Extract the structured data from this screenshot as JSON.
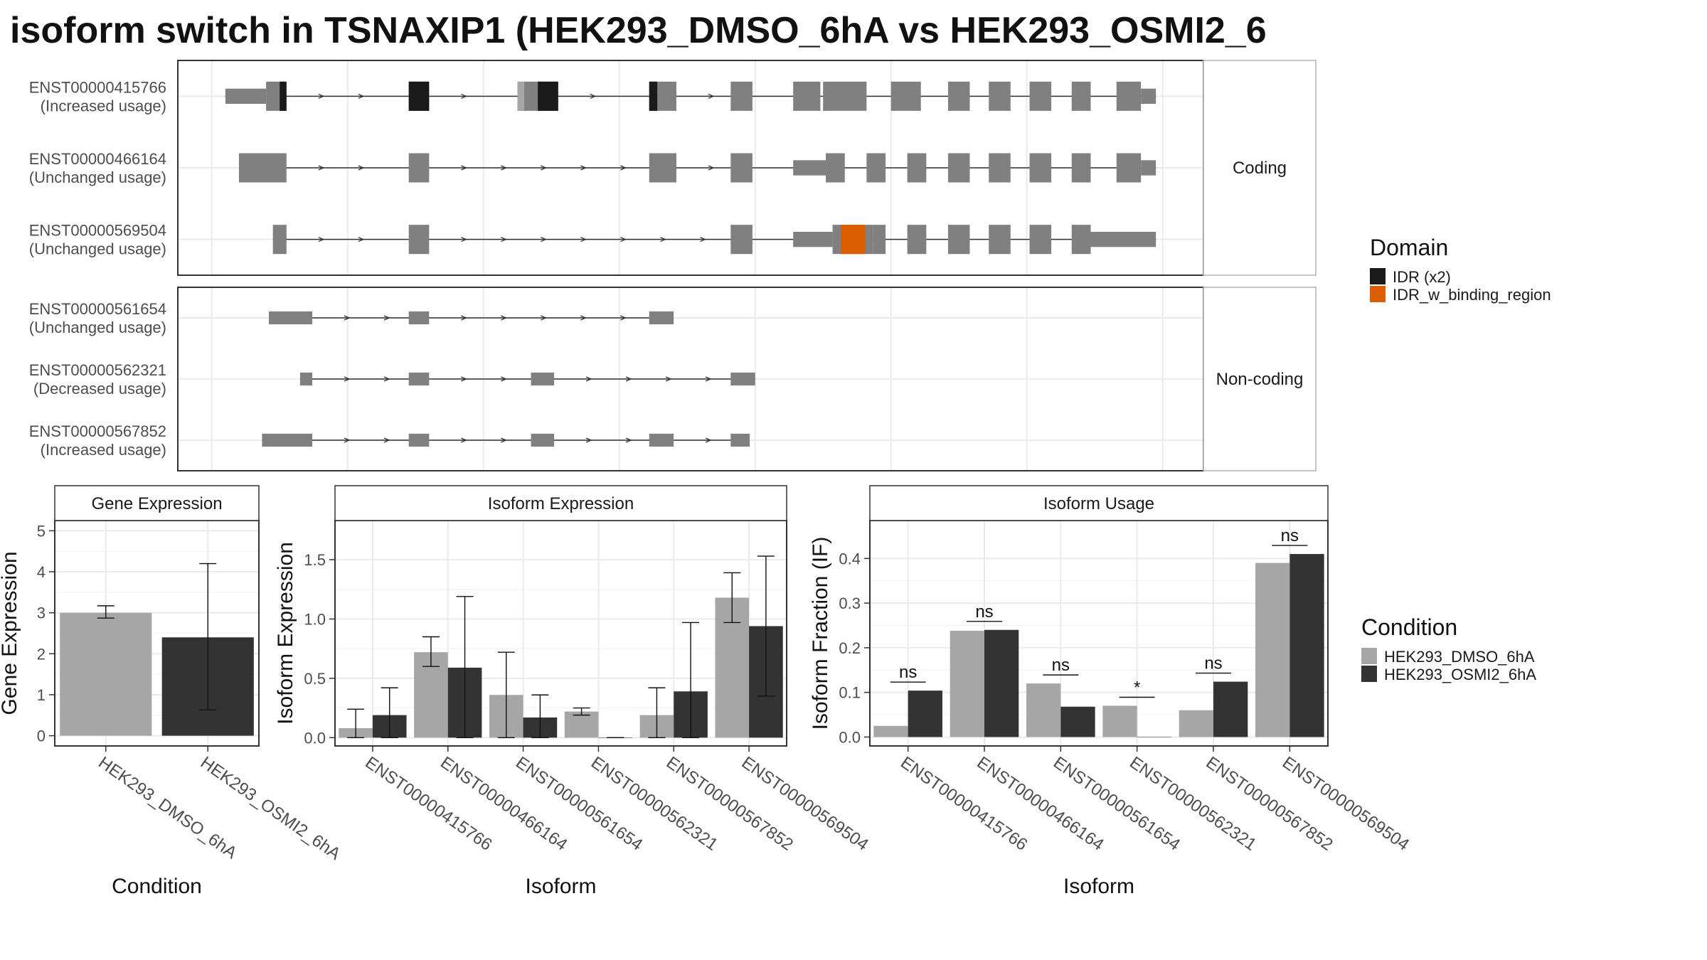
{
  "title": "isoform switch in TSNAXIP1 (HEK293_DMSO_6hA vs HEK293_OSMI2_6",
  "colors": {
    "exon": "#808080",
    "idr": "#1a1a1a",
    "idr_binding": "#d95f02",
    "dmso": "#a6a6a6",
    "osmi": "#333333",
    "panel_border": "#333333",
    "strip_border": "#b3b3b3",
    "grid": "#ebebeb"
  },
  "structure": {
    "facets": [
      {
        "label": "Coding",
        "isoforms": [
          {
            "id": "ENST00000415766",
            "status": "(Increased usage)",
            "exons": [
              [
                1,
                4,
                "s"
              ],
              [
                4,
                5.5,
                "t"
              ],
              [
                14.5,
                16,
                "t"
              ],
              [
                22.5,
                23,
                "t"
              ],
              [
                23,
                24,
                "t"
              ],
              [
                24,
                25.5,
                "t"
              ],
              [
                32.2,
                32.8,
                "t"
              ],
              [
                32.8,
                34.2,
                "t"
              ],
              [
                38.2,
                39.8,
                "t"
              ],
              [
                42.8,
                44.8,
                "t"
              ],
              [
                45,
                48.2,
                "t"
              ],
              [
                50,
                52.2,
                "t"
              ],
              [
                54.2,
                55.8,
                "t"
              ],
              [
                57.2,
                58.8,
                "t"
              ],
              [
                60.2,
                61.8,
                "t"
              ],
              [
                63.3,
                64.7,
                "t"
              ],
              [
                66.6,
                68.4,
                "t"
              ],
              [
                68.4,
                69.5,
                "s"
              ]
            ],
            "domains": [
              [
                5,
                5.5,
                "idr"
              ],
              [
                14.5,
                16,
                "idr"
              ],
              [
                22.5,
                23,
                "light"
              ],
              [
                24,
                25.5,
                "idr"
              ],
              [
                32.2,
                32.8,
                "idr"
              ]
            ]
          },
          {
            "id": "ENST00000466164",
            "status": "(Unchanged usage)",
            "exons": [
              [
                2,
                5.5,
                "t"
              ],
              [
                14.5,
                16,
                "t"
              ],
              [
                32.2,
                34.2,
                "t"
              ],
              [
                38.2,
                39.8,
                "t"
              ],
              [
                42.8,
                45.2,
                "s"
              ],
              [
                45.2,
                46.6,
                "t"
              ],
              [
                48.2,
                49.6,
                "t"
              ],
              [
                51.2,
                52.6,
                "t"
              ],
              [
                54.2,
                55.8,
                "t"
              ],
              [
                57.2,
                58.8,
                "t"
              ],
              [
                60.2,
                61.8,
                "t"
              ],
              [
                63.3,
                64.7,
                "t"
              ],
              [
                66.6,
                68.4,
                "t"
              ],
              [
                68.4,
                69.5,
                "s"
              ]
            ],
            "domains": []
          },
          {
            "id": "ENST00000569504",
            "status": "(Unchanged usage)",
            "exons": [
              [
                4.5,
                5.5,
                "t"
              ],
              [
                14.5,
                16,
                "t"
              ],
              [
                38.2,
                39.8,
                "t"
              ],
              [
                42.8,
                45.7,
                "s"
              ],
              [
                45.7,
                48.7,
                "t"
              ],
              [
                48.7,
                49.6,
                "t"
              ],
              [
                51.2,
                52.6,
                "t"
              ],
              [
                54.2,
                55.8,
                "t"
              ],
              [
                57.2,
                58.8,
                "t"
              ],
              [
                60.2,
                61.8,
                "t"
              ],
              [
                63.3,
                64.7,
                "t"
              ],
              [
                64.7,
                69.5,
                "s"
              ]
            ],
            "domains": [
              [
                46.3,
                48.1,
                "binding"
              ]
            ]
          }
        ]
      },
      {
        "label": "Non-coding",
        "isoforms": [
          {
            "id": "ENST00000561654",
            "status": "(Unchanged usage)",
            "exons": [
              [
                4.2,
                7.4,
                "s"
              ],
              [
                14.5,
                16,
                "s"
              ],
              [
                32.2,
                34,
                "s"
              ]
            ],
            "domains": []
          },
          {
            "id": "ENST00000562321",
            "status": "(Decreased usage)",
            "exons": [
              [
                6.5,
                7.4,
                "s"
              ],
              [
                14.5,
                16,
                "s"
              ],
              [
                23.5,
                25.2,
                "s"
              ],
              [
                38.2,
                40,
                "s"
              ]
            ],
            "domains": []
          },
          {
            "id": "ENST00000567852",
            "status": "(Increased usage)",
            "exons": [
              [
                3.7,
                7.4,
                "s"
              ],
              [
                14.5,
                16,
                "s"
              ],
              [
                23.5,
                25.2,
                "s"
              ],
              [
                32.2,
                34,
                "s"
              ],
              [
                38.2,
                39.6,
                "s"
              ]
            ],
            "domains": []
          }
        ]
      }
    ]
  },
  "legends": {
    "domain": {
      "title": "Domain",
      "items": [
        {
          "label": "IDR (x2)",
          "color": "#1a1a1a"
        },
        {
          "label": "IDR_w_binding_region",
          "color": "#d95f02"
        }
      ]
    },
    "condition": {
      "title": "Condition",
      "items": [
        {
          "label": "HEK293_DMSO_6hA",
          "color": "#a6a6a6"
        },
        {
          "label": "HEK293_OSMI2_6hA",
          "color": "#333333"
        }
      ]
    }
  },
  "chart_data": [
    {
      "type": "bar",
      "strip": "Gene Expression",
      "xlabel": "Condition",
      "ylabel": "Gene Expression",
      "ylim": [
        -0.25,
        5.25
      ],
      "yticks": [
        "0",
        "1",
        "2",
        "3",
        "4",
        "5"
      ],
      "categories": [
        "HEK293_DMSO_6hA",
        "HEK293_OSMI2_6hA"
      ],
      "values": [
        3.0,
        2.4
      ],
      "err_low": [
        2.87,
        0.63
      ],
      "err_high": [
        3.17,
        4.2
      ]
    },
    {
      "type": "bar",
      "strip": "Isoform Expression",
      "xlabel": "Isoform",
      "ylabel": "Isoform Expression",
      "ylim": [
        -0.07,
        1.83
      ],
      "yticks": [
        "0.0",
        "0.5",
        "1.0",
        "1.5"
      ],
      "categories": [
        "ENST00000415766",
        "ENST00000466164",
        "ENST00000561654",
        "ENST00000562321",
        "ENST00000567852",
        "ENST00000569504"
      ],
      "series": [
        {
          "name": "HEK293_DMSO_6hA",
          "values": [
            0.08,
            0.72,
            0.36,
            0.22,
            0.19,
            1.18
          ],
          "err_low": [
            0.0,
            0.6,
            0.0,
            0.19,
            0.0,
            0.97
          ],
          "err_high": [
            0.24,
            0.85,
            0.72,
            0.25,
            0.42,
            1.39
          ]
        },
        {
          "name": "HEK293_OSMI2_6hA",
          "values": [
            0.19,
            0.59,
            0.17,
            0.0,
            0.39,
            0.94
          ],
          "err_low": [
            0.0,
            0.0,
            0.0,
            0.0,
            0.0,
            0.35
          ],
          "err_high": [
            0.42,
            1.19,
            0.36,
            0.0,
            0.97,
            1.53
          ]
        }
      ]
    },
    {
      "type": "bar",
      "strip": "Isoform Usage",
      "xlabel": "Isoform",
      "ylabel": "Isoform Fraction (IF)",
      "ylim": [
        -0.02,
        0.485
      ],
      "yticks": [
        "0.0",
        "0.1",
        "0.2",
        "0.3",
        "0.4"
      ],
      "categories": [
        "ENST00000415766",
        "ENST00000466164",
        "ENST00000561654",
        "ENST00000562321",
        "ENST00000567852",
        "ENST00000569504"
      ],
      "series": [
        {
          "name": "HEK293_DMSO_6hA",
          "values": [
            0.025,
            0.238,
            0.12,
            0.07,
            0.06,
            0.39
          ]
        },
        {
          "name": "HEK293_OSMI2_6hA",
          "values": [
            0.104,
            0.24,
            0.068,
            0.0,
            0.124,
            0.41
          ]
        }
      ],
      "significance": [
        "ns",
        "ns",
        "ns",
        "*",
        "ns",
        "ns"
      ]
    }
  ]
}
